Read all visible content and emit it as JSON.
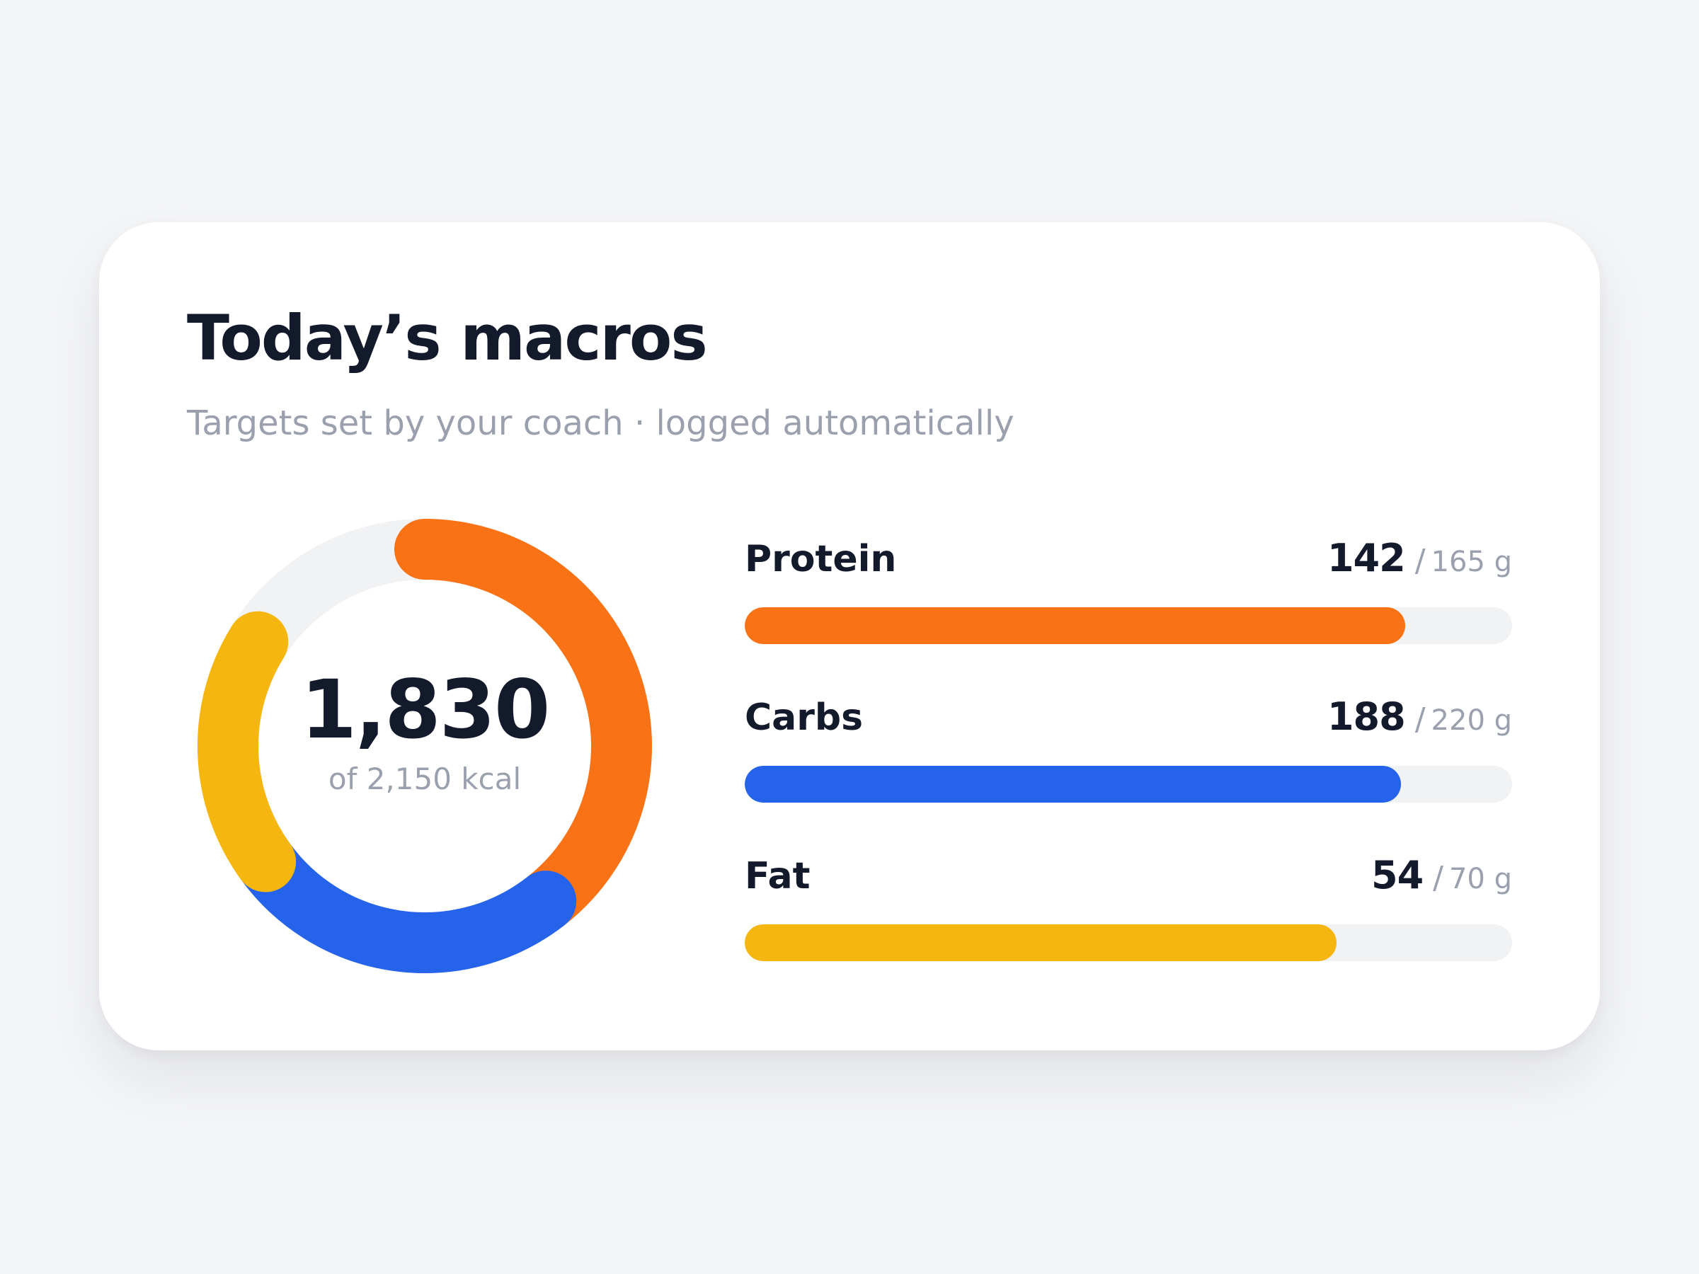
{
  "card": {
    "title": "Today’s macros",
    "subtitle": "Targets set by your coach · logged automatically"
  },
  "calories": {
    "current": "1,830",
    "target_text": "of 2,150 kcal"
  },
  "macros": [
    {
      "label": "Protein",
      "current": "142",
      "separator": "/",
      "target": "165 g",
      "fraction": 0.861,
      "color": "#f97316"
    },
    {
      "label": "Carbs",
      "current": "188",
      "separator": "/",
      "target": "220 g",
      "fraction": 0.855,
      "color": "#2563eb"
    },
    {
      "label": "Fat",
      "current": "54",
      "separator": "/",
      "target": "70 g",
      "fraction": 0.771,
      "color": "#f5b70f"
    }
  ],
  "colors": {
    "track": "#f1f2f4",
    "text_primary": "#121a2c",
    "text_muted": "#9aa0ad",
    "background": "#f4f5f7"
  }
}
